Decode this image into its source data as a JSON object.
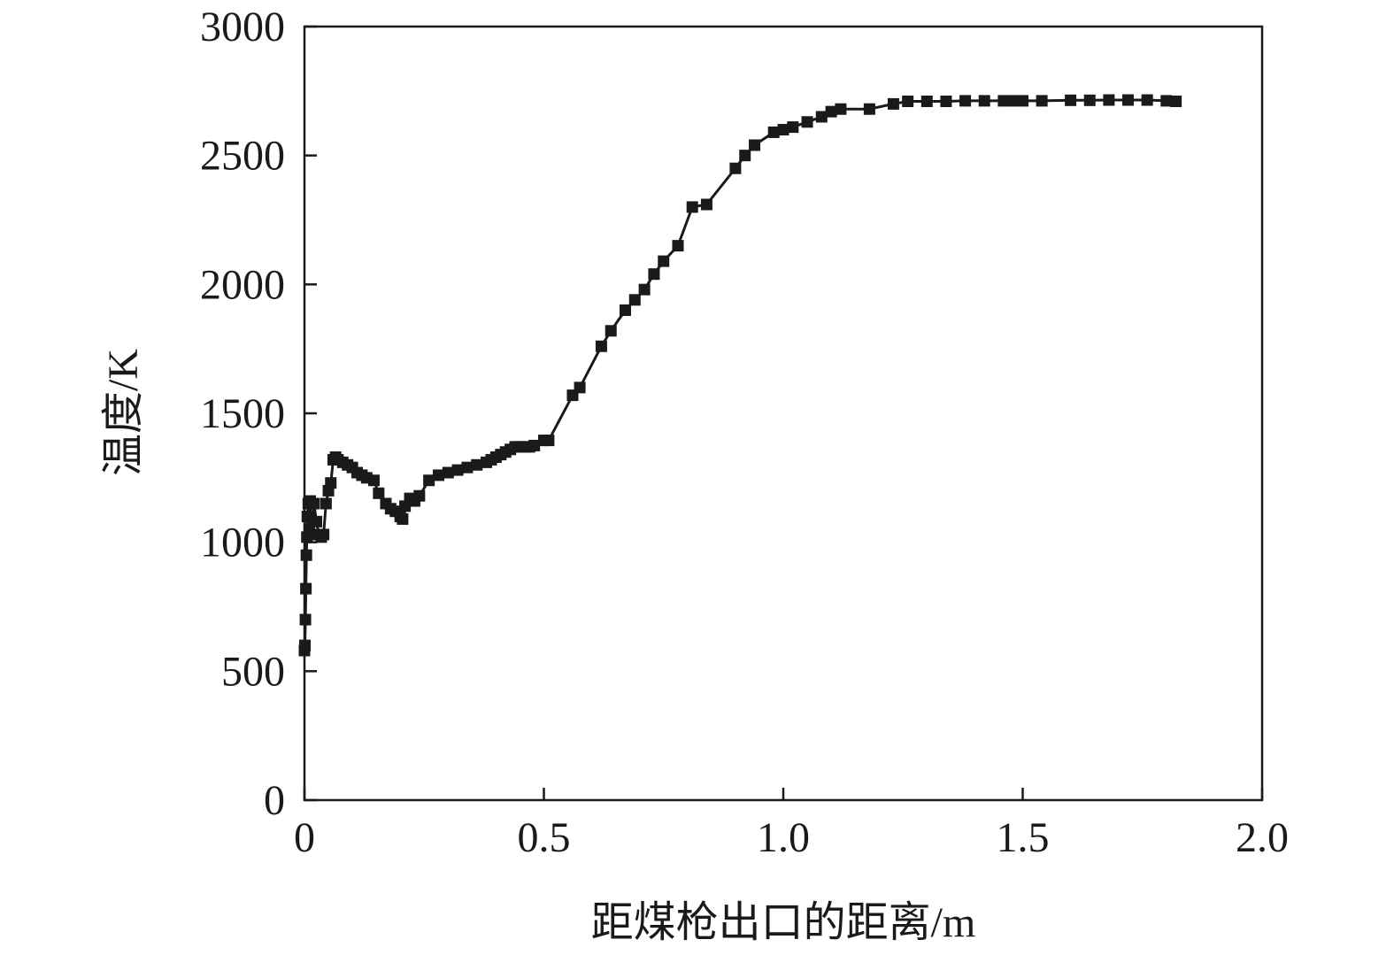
{
  "chart_data": {
    "type": "line",
    "title": "",
    "xlabel": "距煤枪出口的距离/m",
    "ylabel": "温度/K",
    "xlim": [
      0,
      2.0
    ],
    "ylim": [
      0,
      3000
    ],
    "xticks": [
      0,
      0.5,
      1.0,
      1.5,
      2.0
    ],
    "xtick_labels": [
      "0",
      "0.5",
      "1.0",
      "1.5",
      "2.0"
    ],
    "yticks": [
      0,
      500,
      1000,
      1500,
      2000,
      2500,
      3000
    ],
    "ytick_labels": [
      "0",
      "500",
      "1000",
      "1500",
      "2000",
      "2500",
      "3000"
    ],
    "grid": false,
    "legend": "none",
    "line_color": "#1a1a1a",
    "marker": "square",
    "series": [
      {
        "x": [
          0.0,
          0.001,
          0.002,
          0.003,
          0.004,
          0.005,
          0.006,
          0.008,
          0.01,
          0.012,
          0.015,
          0.02,
          0.025,
          0.03,
          0.035,
          0.04,
          0.045,
          0.05,
          0.055,
          0.06,
          0.065,
          0.07,
          0.08,
          0.09,
          0.1,
          0.11,
          0.12,
          0.13,
          0.145,
          0.155,
          0.17,
          0.18,
          0.19,
          0.2,
          0.205,
          0.21,
          0.22,
          0.23,
          0.24,
          0.26,
          0.28,
          0.3,
          0.32,
          0.34,
          0.36,
          0.38,
          0.39,
          0.4,
          0.41,
          0.42,
          0.43,
          0.44,
          0.45,
          0.46,
          0.47,
          0.48,
          0.5,
          0.51,
          0.56,
          0.575,
          0.62,
          0.64,
          0.67,
          0.69,
          0.71,
          0.73,
          0.75,
          0.78,
          0.81,
          0.84,
          0.9,
          0.92,
          0.94,
          0.98,
          1.0,
          1.02,
          1.05,
          1.08,
          1.1,
          1.12,
          1.18,
          1.23,
          1.26,
          1.3,
          1.34,
          1.38,
          1.42,
          1.46,
          1.48,
          1.5,
          1.54,
          1.6,
          1.64,
          1.68,
          1.72,
          1.76,
          1.8,
          1.82
        ],
        "y": [
          580,
          600,
          700,
          820,
          950,
          1020,
          1100,
          1150,
          1050,
          1160,
          1030,
          1150,
          1080,
          1030,
          1020,
          1030,
          1150,
          1200,
          1230,
          1320,
          1330,
          1320,
          1310,
          1300,
          1290,
          1270,
          1260,
          1250,
          1240,
          1190,
          1150,
          1130,
          1120,
          1100,
          1090,
          1140,
          1170,
          1160,
          1180,
          1240,
          1260,
          1270,
          1280,
          1290,
          1300,
          1310,
          1320,
          1330,
          1340,
          1350,
          1360,
          1370,
          1370,
          1370,
          1370,
          1375,
          1395,
          1395,
          1570,
          1600,
          1760,
          1820,
          1900,
          1940,
          1980,
          2040,
          2090,
          2150,
          2300,
          2310,
          2450,
          2500,
          2540,
          2590,
          2600,
          2610,
          2630,
          2650,
          2670,
          2680,
          2680,
          2700,
          2710,
          2710,
          2710,
          2712,
          2712,
          2712,
          2712,
          2712,
          2712,
          2714,
          2714,
          2715,
          2715,
          2715,
          2712,
          2710
        ]
      }
    ]
  }
}
